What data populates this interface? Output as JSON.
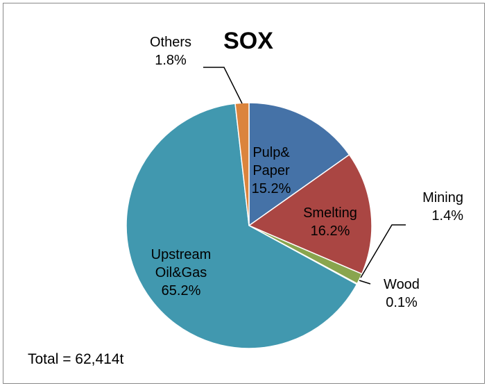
{
  "chart_data": {
    "type": "pie",
    "title": "SOX",
    "annotation": "Total = 62,414t",
    "legend": "none",
    "slices": [
      {
        "name_lines": [
          "Pulp&",
          "Paper"
        ],
        "percent_label": "15.2%",
        "value": 15.2,
        "color": "#4572A7"
      },
      {
        "name_lines": [
          "Smelting"
        ],
        "percent_label": "16.2%",
        "value": 16.2,
        "color": "#AA4643"
      },
      {
        "name_lines": [
          "Mining"
        ],
        "percent_label": "1.4%",
        "value": 1.4,
        "color": "#89A54E"
      },
      {
        "name_lines": [
          "Wood"
        ],
        "percent_label": "0.1%",
        "value": 0.1,
        "color": "#71588F"
      },
      {
        "name_lines": [
          "Upstream",
          "Oil&Gas"
        ],
        "percent_label": "65.2%",
        "value": 65.2,
        "color": "#4198AF"
      },
      {
        "name_lines": [
          "Others"
        ],
        "percent_label": "1.8%",
        "value": 1.8,
        "color": "#DB843D"
      }
    ]
  }
}
